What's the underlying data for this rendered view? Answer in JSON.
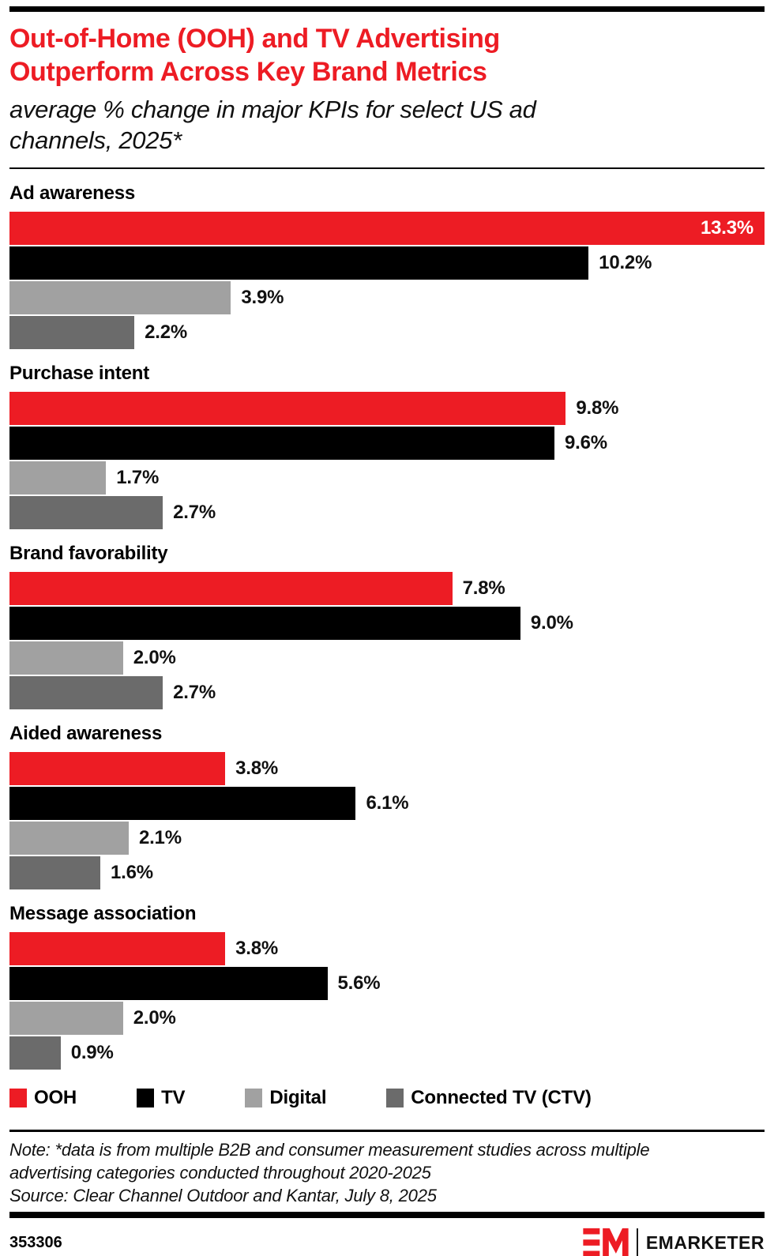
{
  "header": {
    "title_lines": [
      "Out-of-Home (OOH) and TV Advertising",
      "Outperform Across Key Brand Metrics"
    ],
    "subtitle_lines": [
      "average % change in major KPIs for select US ad",
      "channels, 2025*"
    ],
    "title_color": "#ED1C24"
  },
  "chart_data": {
    "type": "bar",
    "orientation": "horizontal",
    "title": "Out-of-Home (OOH) and TV Advertising Outperform Across Key Brand Metrics",
    "subtitle": "average % change in major KPIs for select US ad channels, 2025*",
    "categories": [
      "Ad awareness",
      "Purchase intent",
      "Brand favorability",
      "Aided awareness",
      "Message association"
    ],
    "series": [
      {
        "name": "OOH",
        "color": "#ED1C24",
        "values": [
          13.3,
          9.8,
          7.8,
          3.8,
          3.8
        ]
      },
      {
        "name": "TV",
        "color": "#000000",
        "values": [
          10.2,
          9.6,
          9.0,
          6.1,
          5.6
        ]
      },
      {
        "name": "Digital",
        "color": "#A1A1A1",
        "values": [
          3.9,
          1.7,
          2.0,
          2.1,
          2.0
        ]
      },
      {
        "name": "Connected TV (CTV)",
        "color": "#6B6B6B",
        "values": [
          2.2,
          2.7,
          2.7,
          1.6,
          0.9
        ]
      }
    ],
    "xmax": 13.3,
    "value_suffix": "%",
    "grid": false,
    "legend_position": "bottom",
    "value_labels": {
      "Ad awareness": [
        "13.3%",
        "10.2%",
        "3.9%",
        "2.2%"
      ],
      "Purchase intent": [
        "9.8%",
        "9.6%",
        "1.7%",
        "2.7%"
      ],
      "Brand favorability": [
        "7.8%",
        "9.0%",
        "2.0%",
        "2.7%"
      ],
      "Aided awareness": [
        "3.8%",
        "6.1%",
        "2.1%",
        "1.6%"
      ],
      "Message association": [
        "3.8%",
        "5.6%",
        "2.0%",
        "0.9%"
      ]
    }
  },
  "footnote": {
    "note_lines": [
      "Note: *data is from multiple B2B and consumer measurement studies across multiple",
      "advertising categories conducted throughout 2020-2025"
    ],
    "source": "Source: Clear Channel Outdoor and Kantar, July 8, 2025"
  },
  "footer": {
    "chart_id": "353306",
    "brand": "EMARKETER"
  }
}
